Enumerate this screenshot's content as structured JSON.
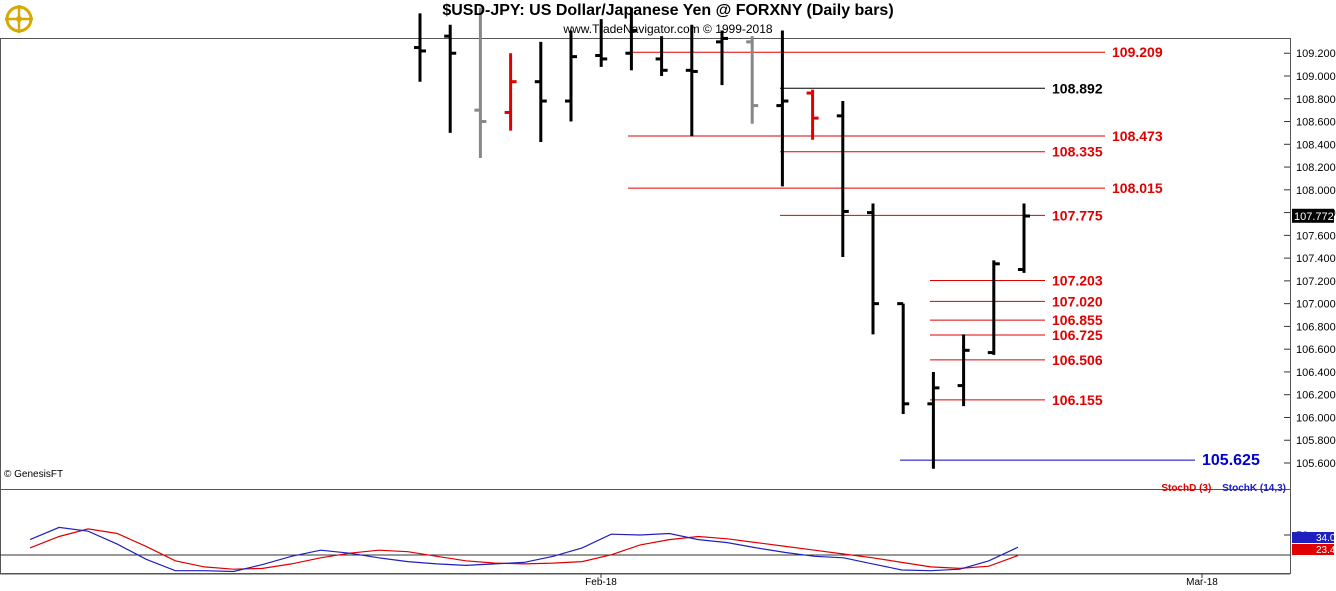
{
  "header": {
    "title": "$USD-JPY:  US Dollar/Japanese Yen @ FORXNY  (Daily bars)",
    "subtitle": "www.TradeNavigator.com © 1999-2018"
  },
  "footer": {
    "copyright": "© GenesisFT"
  },
  "indicator_labels": {
    "stoch_d": "StochD (3)",
    "stoch_k": "StochK (14,3)"
  },
  "colors": {
    "bar_up": "#000000",
    "bar_gray": "#888888",
    "bar_red": "#e00000",
    "level_red": "#e00000",
    "level_black": "#000000",
    "level_blue": "#0000cc",
    "stoch_d": "#e00000",
    "stoch_k": "#2020c0"
  },
  "chart_data": [
    {
      "type": "bar",
      "subtype": "ohlc",
      "title": "$USD-JPY:  US Dollar/Japanese Yen @ FORXNY  (Daily bars)",
      "ylim": [
        105.45,
        109.45
      ],
      "y_ticks": [
        "109.200",
        "109.000",
        "108.800",
        "108.600",
        "108.400",
        "108.200",
        "108.000",
        "107.800",
        "107.600",
        "107.400",
        "107.200",
        "107.000",
        "106.800",
        "106.600",
        "106.400",
        "106.200",
        "106.000",
        "105.800",
        "105.600"
      ],
      "x_ticks": [
        "Feb-18",
        "Mar-18"
      ],
      "last_price": "107.772",
      "bars": [
        {
          "o": 109.25,
          "h": 109.55,
          "l": 108.95,
          "c": 109.22,
          "color": "black"
        },
        {
          "o": 109.35,
          "h": 109.45,
          "l": 108.5,
          "c": 109.2,
          "color": "black"
        },
        {
          "o": 108.7,
          "h": 109.6,
          "l": 108.28,
          "c": 108.6,
          "color": "gray"
        },
        {
          "o": 108.68,
          "h": 109.2,
          "l": 108.52,
          "c": 108.95,
          "color": "red"
        },
        {
          "o": 108.95,
          "h": 109.3,
          "l": 108.42,
          "c": 108.78,
          "color": "black"
        },
        {
          "o": 108.78,
          "h": 109.4,
          "l": 108.6,
          "c": 109.17,
          "color": "black"
        },
        {
          "o": 109.18,
          "h": 109.5,
          "l": 109.08,
          "c": 109.15,
          "color": "black"
        },
        {
          "o": 109.2,
          "h": 109.6,
          "l": 109.05,
          "c": 109.4,
          "color": "black"
        },
        {
          "o": 109.15,
          "h": 109.35,
          "l": 109.0,
          "c": 109.05,
          "color": "black"
        },
        {
          "o": 109.05,
          "h": 109.45,
          "l": 108.47,
          "c": 109.04,
          "color": "black"
        },
        {
          "o": 109.3,
          "h": 109.4,
          "l": 108.92,
          "c": 109.33,
          "color": "black"
        },
        {
          "o": 109.3,
          "h": 109.35,
          "l": 108.58,
          "c": 108.74,
          "color": "gray"
        },
        {
          "o": 108.74,
          "h": 109.4,
          "l": 108.03,
          "c": 108.78,
          "color": "black"
        },
        {
          "o": 108.85,
          "h": 108.88,
          "l": 108.44,
          "c": 108.63,
          "color": "red"
        },
        {
          "o": 108.65,
          "h": 108.78,
          "l": 107.41,
          "c": 107.81,
          "color": "black"
        },
        {
          "o": 107.8,
          "h": 107.88,
          "l": 106.73,
          "c": 107.0,
          "color": "black"
        },
        {
          "o": 107.0,
          "h": 107.0,
          "l": 106.03,
          "c": 106.12,
          "color": "black"
        },
        {
          "o": 106.12,
          "h": 106.4,
          "l": 105.55,
          "c": 106.26,
          "color": "black"
        },
        {
          "o": 106.28,
          "h": 106.73,
          "l": 106.1,
          "c": 106.59,
          "color": "black"
        },
        {
          "o": 106.57,
          "h": 107.38,
          "l": 106.55,
          "c": 107.35,
          "color": "black"
        },
        {
          "o": 107.3,
          "h": 107.88,
          "l": 107.27,
          "c": 107.77,
          "color": "black"
        }
      ],
      "levels": [
        {
          "value": 109.209,
          "label": "109.209",
          "color": "red"
        },
        {
          "value": 108.892,
          "label": "108.892",
          "color": "black"
        },
        {
          "value": 108.473,
          "label": "108.473",
          "color": "red"
        },
        {
          "value": 108.335,
          "label": "108.335",
          "color": "red"
        },
        {
          "value": 108.015,
          "label": "108.015",
          "color": "red"
        },
        {
          "value": 107.775,
          "label": "107.775",
          "color": "red"
        },
        {
          "value": 107.203,
          "label": "107.203",
          "color": "red"
        },
        {
          "value": 107.02,
          "label": "107.020",
          "color": "red"
        },
        {
          "value": 106.855,
          "label": "106.855",
          "color": "red"
        },
        {
          "value": 106.725,
          "label": "106.725",
          "color": "red"
        },
        {
          "value": 106.506,
          "label": "106.506",
          "color": "red"
        },
        {
          "value": 106.155,
          "label": "106.155",
          "color": "red"
        },
        {
          "value": 105.625,
          "label": "105.625",
          "color": "blue"
        }
      ]
    },
    {
      "type": "line",
      "ylim": [
        0,
        100
      ],
      "y_ticks": [
        "50"
      ],
      "last_values": {
        "stoch_k": "34.05",
        "stoch_d": "23.45"
      },
      "series": [
        {
          "name": "StochD (3)",
          "values": [
            33,
            48,
            58,
            52,
            35,
            16,
            8,
            5,
            6,
            12,
            20,
            26,
            30,
            28,
            22,
            16,
            13,
            12,
            13,
            15,
            24,
            37,
            44,
            48,
            45,
            40,
            35,
            30,
            25,
            20,
            14,
            8,
            6,
            9,
            23
          ]
        },
        {
          "name": "StochK (14,3)",
          "values": [
            44,
            60,
            55,
            38,
            18,
            3,
            3,
            2,
            11,
            22,
            30,
            26,
            20,
            15,
            12,
            10,
            12,
            14,
            22,
            33,
            51,
            50,
            52,
            44,
            40,
            33,
            27,
            22,
            20,
            12,
            4,
            3,
            5,
            16,
            34
          ]
        }
      ]
    }
  ]
}
